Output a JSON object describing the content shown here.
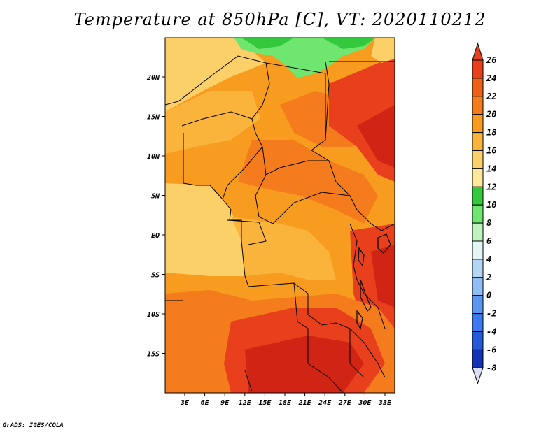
{
  "title": "Temperature at 850hPa [C], VT: 2020110212",
  "credit": "GrADS: IGES/COLA",
  "lat_ticks": [
    "20N",
    "15N",
    "10N",
    "5N",
    "EQ",
    "5S",
    "10S",
    "15S"
  ],
  "lon_ticks": [
    "3E",
    "6E",
    "9E",
    "12E",
    "15E",
    "18E",
    "21E",
    "24E",
    "27E",
    "30E",
    "33E"
  ],
  "colorbar": {
    "levels": [
      "26",
      "24",
      "22",
      "20",
      "18",
      "16",
      "14",
      "12",
      "10",
      "8",
      "6",
      "4",
      "2",
      "0",
      "-2",
      "-4",
      "-6",
      "-8"
    ],
    "colors": [
      "#e8401c",
      "#f06018",
      "#f47c1c",
      "#f89c20",
      "#fab43c",
      "#fcd068",
      "#fee89c",
      "#34c83c",
      "#6ee670",
      "#bef2be",
      "#e2f6f6",
      "#b4d6f6",
      "#8ebef4",
      "#5a96f0",
      "#3c78f0",
      "#245ad8",
      "#1432b4",
      "#0c0c78"
    ]
  },
  "colors": {
    "hot_dark": "#d02414",
    "hot": "#e8401c",
    "warm": "#f47c1c",
    "mid": "#fab43c",
    "pale": "#fcd068",
    "cool_green": "#34c83c",
    "light_green": "#6ee670"
  }
}
